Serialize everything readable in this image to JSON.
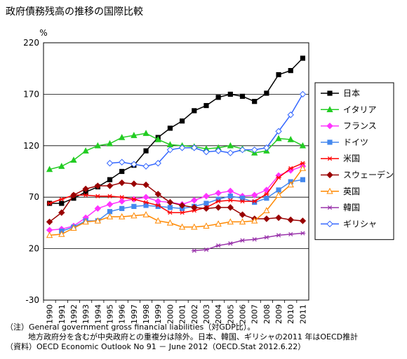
{
  "title": "政府債務残高の推移の国際比較",
  "notes": [
    "（注）General government gross financial liabilities（対GDP比）。",
    "地方政府分を含むが中央政府との重複分は除外。日本、韓国、ギリシャの2011 年はOECD推計",
    "（資料）OECD Economic Outlook No 91 － June 2012（OECD.Stat 2012.6.22）"
  ],
  "chart_data": {
    "type": "line",
    "title": "政府債務残高の推移の国際比較",
    "ylabel": "%",
    "xlabel": "",
    "ylim": [
      -30,
      220
    ],
    "yticks": [
      -30,
      20,
      70,
      120,
      170,
      220
    ],
    "categories": [
      "1990",
      "1991",
      "1992",
      "1993",
      "1994",
      "1995",
      "1996",
      "1997",
      "1998",
      "1999",
      "2000",
      "2001",
      "2002",
      "2003",
      "2004",
      "2005",
      "2006",
      "2007",
      "2008",
      "2009",
      "2010",
      "2011"
    ],
    "grid": "horizontal",
    "legend_position": "right",
    "series": [
      {
        "name": "日本",
        "color": "#000000",
        "marker": "square-filled",
        "values": [
          64,
          64,
          69,
          75,
          80,
          87,
          95,
          101,
          115,
          128,
          137,
          144,
          154,
          159,
          167,
          170,
          168,
          163,
          171,
          189,
          193,
          205
        ]
      },
      {
        "name": "イタリア",
        "color": "#22cc22",
        "marker": "triangle-filled",
        "values": [
          97,
          100,
          106,
          115,
          120,
          122,
          128,
          130,
          132,
          126,
          121,
          120,
          119,
          117,
          118,
          120,
          117,
          113,
          115,
          127,
          126,
          120
        ]
      },
      {
        "name": "フランス",
        "color": "#ff33ff",
        "marker": "diamond-filled",
        "values": [
          38,
          39,
          42,
          50,
          59,
          63,
          66,
          68,
          70,
          66,
          65,
          63,
          67,
          71,
          74,
          76,
          71,
          72,
          77,
          91,
          96,
          100
        ]
      },
      {
        "name": "ドイツ",
        "color": "#4488ee",
        "marker": "square-filled",
        "values": [
          null,
          37,
          41,
          47,
          47,
          56,
          59,
          61,
          62,
          61,
          60,
          59,
          61,
          64,
          68,
          71,
          69,
          65,
          69,
          77,
          85,
          87
        ]
      },
      {
        "name": "米国",
        "color": "#ff0000",
        "marker": "asterisk",
        "values": [
          64,
          68,
          72,
          72,
          71,
          71,
          70,
          68,
          65,
          62,
          55,
          55,
          57,
          60,
          66,
          67,
          66,
          66,
          73,
          89,
          98,
          103
        ]
      },
      {
        "name": "スウェーデン",
        "color": "#990000",
        "marker": "diamond-filled",
        "values": [
          46,
          55,
          72,
          78,
          81,
          81,
          84,
          83,
          82,
          73,
          65,
          62,
          60,
          59,
          60,
          60,
          53,
          49,
          49,
          50,
          48,
          47
        ]
      },
      {
        "name": "英国",
        "color": "#ff8800",
        "marker": "triangle-open",
        "values": [
          33,
          34,
          40,
          46,
          47,
          51,
          51,
          52,
          53,
          47,
          45,
          41,
          41,
          42,
          44,
          46,
          46,
          47,
          57,
          72,
          82,
          98
        ]
      },
      {
        "name": "韓国",
        "color": "#9933aa",
        "marker": "asterisk",
        "values": [
          null,
          null,
          null,
          null,
          null,
          null,
          null,
          null,
          null,
          null,
          null,
          null,
          18,
          19,
          23,
          25,
          28,
          29,
          31,
          33,
          34,
          35
        ]
      },
      {
        "name": "ギリシャ",
        "color": "#3366ff",
        "marker": "diamond-open",
        "values": [
          null,
          null,
          null,
          null,
          null,
          103,
          104,
          102,
          100,
          103,
          116,
          118,
          118,
          114,
          115,
          113,
          116,
          116,
          118,
          134,
          150,
          170
        ]
      }
    ]
  }
}
